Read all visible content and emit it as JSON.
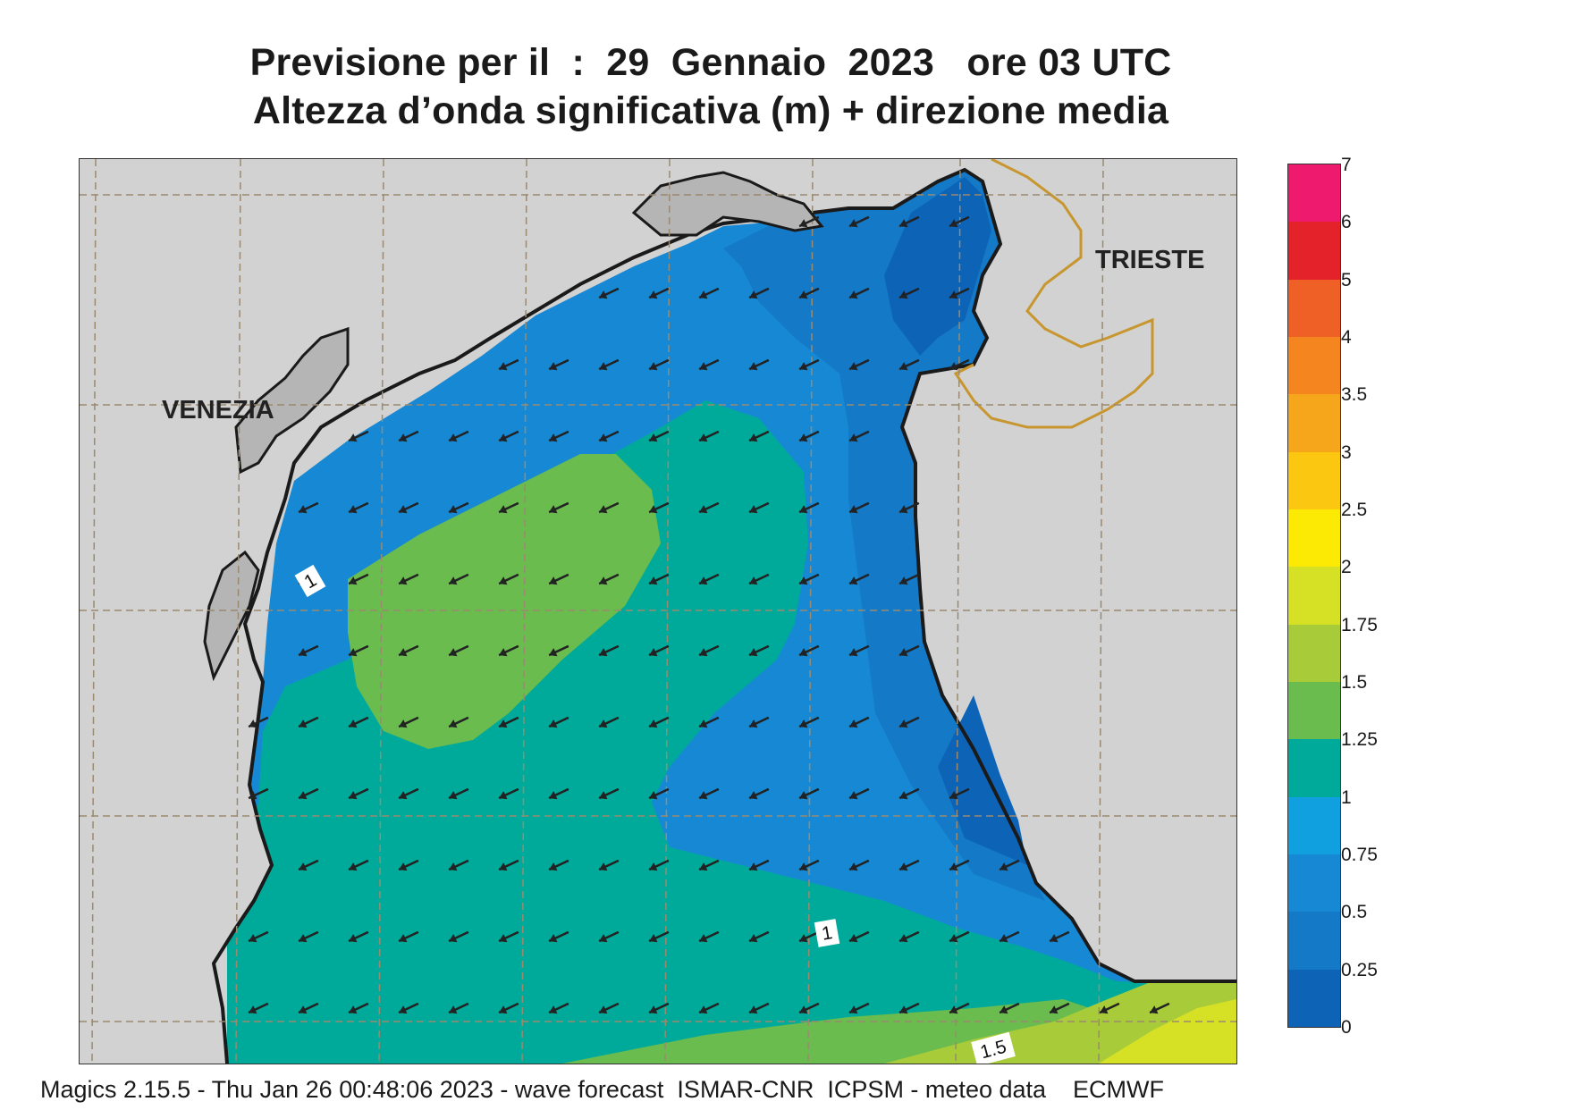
{
  "title": {
    "line1": "Previsione per il  :  29  Gennaio  2023   ore 03 UTC",
    "line2": "Altezza d’onda significativa (m) + direzione media"
  },
  "map": {
    "cities": [
      {
        "name": "VENEZIA"
      },
      {
        "name": "TRIESTE"
      }
    ],
    "contour_labels": [
      "1",
      "1",
      "1.5"
    ],
    "colors": {
      "land": "#d2d2d2",
      "coastline": "#1a1a1a",
      "border": "#c8962e",
      "grid": "#9a8a70",
      "arrow": "#222222"
    },
    "wave_direction": "towards south-west"
  },
  "colorbar": {
    "levels": [
      "7",
      "6",
      "5",
      "4",
      "3.5",
      "3",
      "2.5",
      "2",
      "1.75",
      "1.5",
      "1.25",
      "1",
      "0.75",
      "0.5",
      "0.25",
      "0"
    ],
    "colors": [
      "#ee1a6e",
      "#e4222a",
      "#ee6026",
      "#f5861f",
      "#f6a61b",
      "#fbc710",
      "#fcea05",
      "#d6e024",
      "#a8cb3a",
      "#6abc4e",
      "#00aa9a",
      "#10a0e0",
      "#1789d4",
      "#1479c6",
      "#0d63b6"
    ]
  },
  "footer": "Magics 2.15.5 - Thu Jan 26 00:48:06 2023 - wave forecast  ISMAR-CNR  ICPSM - meteo data    ECMWF"
}
